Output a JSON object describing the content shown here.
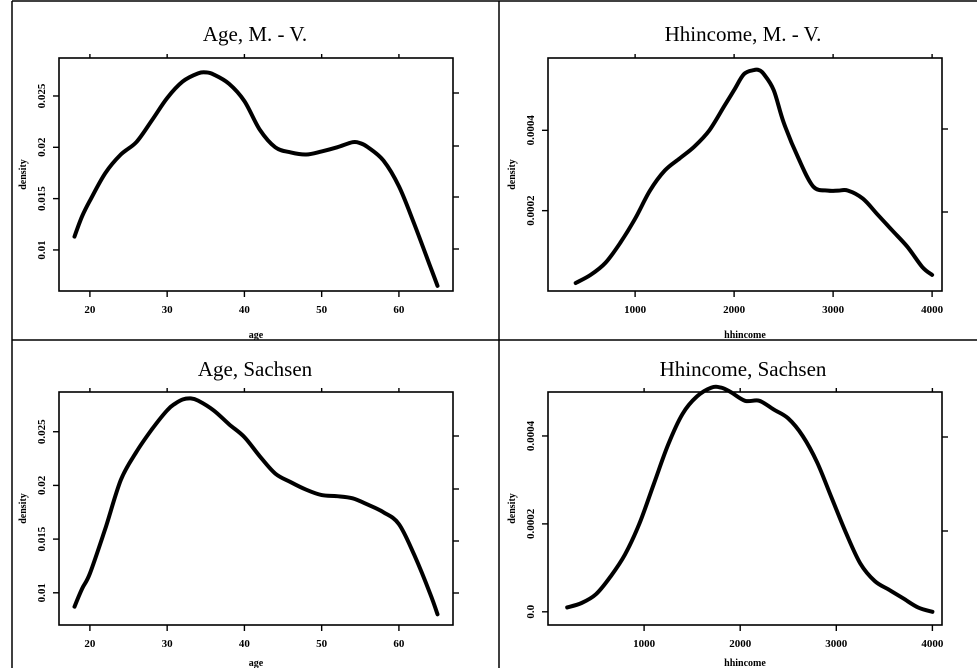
{
  "chart_data": [
    {
      "type": "line",
      "title": "Age, M. - V.",
      "xlabel": "age",
      "ylabel": "density",
      "xlim": [
        16,
        67
      ],
      "ylim": [
        0.006,
        0.0287
      ],
      "x_ticks": [
        20,
        30,
        40,
        50,
        60
      ],
      "x_tick_labels": [
        "20",
        "30",
        "40",
        "50",
        "60"
      ],
      "y_ticks": [
        0.01,
        0.015,
        0.02,
        0.025
      ],
      "y_tick_labels": [
        "0.01",
        "0.015",
        "0.02",
        "0.025"
      ],
      "series": [
        {
          "x": [
            18,
            19,
            20,
            22,
            24,
            26,
            28,
            30,
            32,
            34,
            35,
            36,
            38,
            40,
            42,
            44,
            46,
            48,
            50,
            52,
            54,
            55,
            56,
            58,
            60,
            62,
            64,
            65
          ],
          "y": [
            0.0113,
            0.0133,
            0.0148,
            0.0175,
            0.0193,
            0.0205,
            0.0226,
            0.0248,
            0.0264,
            0.0272,
            0.0273,
            0.0271,
            0.0262,
            0.0245,
            0.0217,
            0.02,
            0.0195,
            0.0193,
            0.0196,
            0.02,
            0.0205,
            0.0204,
            0.02,
            0.0187,
            0.0162,
            0.0125,
            0.0085,
            0.0065
          ]
        }
      ]
    },
    {
      "type": "line",
      "title": "Hhincome, M. - V.",
      "xlabel": "hhincome",
      "ylabel": "density",
      "xlim": [
        120,
        4100
      ],
      "ylim": [
        0.0,
        0.00058
      ],
      "x_ticks": [
        1000,
        2000,
        3000,
        4000
      ],
      "x_tick_labels": [
        "1000",
        "2000",
        "3000",
        "4000"
      ],
      "y_ticks": [
        0.0002,
        0.0004
      ],
      "y_tick_labels": [
        "0.0002",
        "0.0004"
      ],
      "series": [
        {
          "x": [
            400,
            550,
            700,
            850,
            1000,
            1150,
            1300,
            1450,
            1600,
            1750,
            1900,
            2000,
            2100,
            2200,
            2250,
            2300,
            2400,
            2500,
            2650,
            2800,
            2950,
            3050,
            3150,
            3300,
            3450,
            3600,
            3750,
            3900,
            4000
          ],
          "y": [
            2e-05,
            4e-05,
            7e-05,
            0.00012,
            0.00018,
            0.00025,
            0.0003,
            0.00033,
            0.00036,
            0.0004,
            0.00046,
            0.0005,
            0.00054,
            0.00055,
            0.00055,
            0.00054,
            0.0005,
            0.00042,
            0.00033,
            0.00026,
            0.00025,
            0.00025,
            0.00025,
            0.00023,
            0.00019,
            0.00015,
            0.00011,
            6e-05,
            4e-05
          ]
        }
      ]
    },
    {
      "type": "line",
      "title": "Age, Sachsen",
      "xlabel": "age",
      "ylabel": "density",
      "xlim": [
        16,
        67
      ],
      "ylim": [
        0.007,
        0.0287
      ],
      "x_ticks": [
        20,
        30,
        40,
        50,
        60
      ],
      "x_tick_labels": [
        "20",
        "30",
        "40",
        "50",
        "60"
      ],
      "y_ticks": [
        0.01,
        0.015,
        0.02,
        0.025
      ],
      "y_tick_labels": [
        "0.01",
        "0.015",
        "0.02",
        "0.025"
      ],
      "series": [
        {
          "x": [
            18,
            19,
            20,
            22,
            24,
            26,
            28,
            30,
            31,
            32,
            33,
            34,
            36,
            38,
            40,
            42,
            44,
            46,
            48,
            50,
            52,
            54,
            56,
            58,
            60,
            62,
            64,
            65
          ],
          "y": [
            0.0087,
            0.0104,
            0.0118,
            0.016,
            0.0205,
            0.0231,
            0.0252,
            0.027,
            0.0276,
            0.028,
            0.0281,
            0.0279,
            0.027,
            0.0257,
            0.0245,
            0.0227,
            0.0211,
            0.0203,
            0.0196,
            0.0191,
            0.019,
            0.0188,
            0.0182,
            0.0175,
            0.0164,
            0.0135,
            0.01,
            0.008
          ]
        }
      ]
    },
    {
      "type": "line",
      "title": "Hhincome, Sachsen",
      "xlabel": "hhincome",
      "ylabel": "density",
      "xlim": [
        0,
        4100
      ],
      "ylim": [
        -3e-05,
        0.0005
      ],
      "x_ticks": [
        1000,
        2000,
        3000,
        4000
      ],
      "x_tick_labels": [
        "1000",
        "2000",
        "3000",
        "4000"
      ],
      "y_ticks": [
        0.0,
        0.0002,
        0.0004
      ],
      "y_tick_labels": [
        "0.0",
        "0.0002",
        "0.0004"
      ],
      "series": [
        {
          "x": [
            200,
            350,
            500,
            650,
            800,
            950,
            1100,
            1250,
            1400,
            1550,
            1700,
            1800,
            1900,
            2050,
            2200,
            2350,
            2500,
            2650,
            2800,
            2950,
            3100,
            3250,
            3400,
            3550,
            3700,
            3850,
            4000
          ],
          "y": [
            1e-05,
            2e-05,
            4e-05,
            8e-05,
            0.00013,
            0.0002,
            0.00029,
            0.00038,
            0.00045,
            0.00049,
            0.00051,
            0.00051,
            0.0005,
            0.00048,
            0.00048,
            0.00046,
            0.00044,
            0.0004,
            0.00034,
            0.00026,
            0.00018,
            0.00011,
            7e-05,
            5e-05,
            3e-05,
            1e-05,
            0.0
          ]
        }
      ]
    }
  ]
}
